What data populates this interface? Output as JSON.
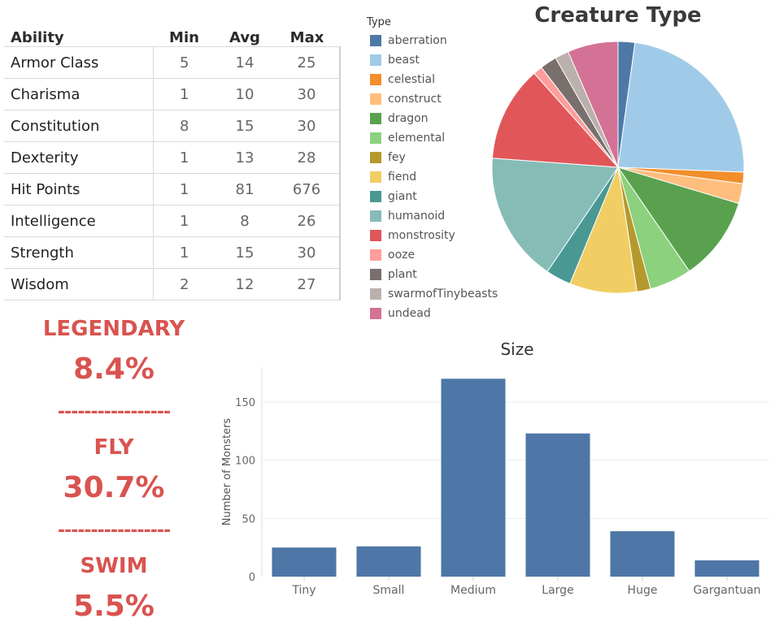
{
  "ability_table": {
    "headers": [
      "Ability",
      "Min",
      "Avg",
      "Max"
    ],
    "rows": [
      [
        "Armor Class",
        "5",
        "14",
        "25"
      ],
      [
        "Charisma",
        "1",
        "10",
        "30"
      ],
      [
        "Constitution",
        "8",
        "15",
        "30"
      ],
      [
        "Dexterity",
        "1",
        "13",
        "28"
      ],
      [
        "Hit Points",
        "1",
        "81",
        "676"
      ],
      [
        "Intelligence",
        "1",
        "8",
        "26"
      ],
      [
        "Strength",
        "1",
        "15",
        "30"
      ],
      [
        "Wisdom",
        "2",
        "12",
        "27"
      ]
    ]
  },
  "stats": {
    "legendary_label": "LEGENDARY",
    "legendary_value": "8.4%",
    "separator": "-----------------",
    "fly_label": "FLY",
    "fly_value": "30.7%",
    "swim_label": "SWIM",
    "swim_value": "5.5%"
  },
  "chart_data": [
    {
      "type": "pie",
      "title": "Creature Type",
      "legend_title": "Type",
      "legend_position": "left",
      "categories": [
        "aberration",
        "beast",
        "celestial",
        "construct",
        "dragon",
        "elemental",
        "fey",
        "fiend",
        "giant",
        "humanoid",
        "monstrosity",
        "ooze",
        "plant",
        "swarmofTinybeasts",
        "undead"
      ],
      "values": [
        2.2,
        23.9,
        1.5,
        2.6,
        11.0,
        5.5,
        1.8,
        8.8,
        3.3,
        17.0,
        12.5,
        1.2,
        2.2,
        1.8,
        6.6
      ],
      "colors": [
        "#4e79a7",
        "#a0cbe8",
        "#f28e2b",
        "#ffbe7d",
        "#59a14f",
        "#8cd17d",
        "#b6992d",
        "#f1ce63",
        "#499894",
        "#86bcb6",
        "#e15759",
        "#ff9d9a",
        "#79706e",
        "#bab0ac",
        "#d37295"
      ]
    },
    {
      "type": "bar",
      "title": "Size",
      "xlabel": "",
      "ylabel": "Number of Monsters",
      "categories": [
        "Tiny",
        "Small",
        "Medium",
        "Large",
        "Huge",
        "Gargantuan"
      ],
      "values": [
        25,
        26,
        170,
        123,
        39,
        14
      ],
      "ylim": [
        0,
        180
      ],
      "yticks": [
        0,
        50,
        100,
        150
      ],
      "color": "#4e76a6",
      "grid": true
    }
  ]
}
